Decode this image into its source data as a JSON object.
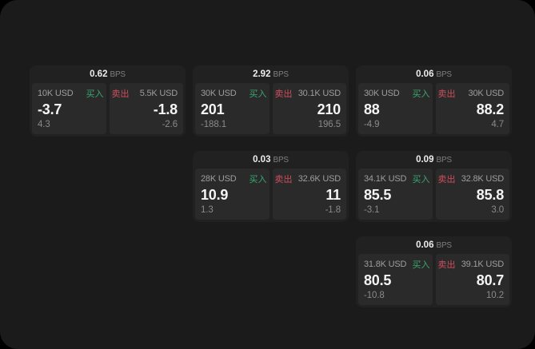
{
  "colors": {
    "window_bg": "#1b1b1c",
    "outer_bg": "#000000",
    "card_bg": "#212122",
    "pane_bg": "#2a2a2b",
    "buy": "#38a76f",
    "sell": "#cd4f5d"
  },
  "bps_unit": "BPS",
  "labels": {
    "buy": "买入",
    "sell": "卖出"
  },
  "cards": [
    {
      "bps": "0.62",
      "col": 1,
      "row": 1,
      "buy": {
        "size": "10K USD",
        "value": "-3.7",
        "sub": "4.3"
      },
      "sell": {
        "size": "5.5K USD",
        "value": "-1.8",
        "sub": "-2.6"
      }
    },
    {
      "bps": "2.92",
      "col": 2,
      "row": 1,
      "buy": {
        "size": "30K USD",
        "value": "201",
        "sub": "-188.1"
      },
      "sell": {
        "size": "30.1K USD",
        "value": "210",
        "sub": "196.5"
      }
    },
    {
      "bps": "0.06",
      "col": 3,
      "row": 1,
      "buy": {
        "size": "30K USD",
        "value": "88",
        "sub": "-4.9"
      },
      "sell": {
        "size": "30K USD",
        "value": "88.2",
        "sub": "4.7"
      }
    },
    {
      "bps": "0.03",
      "col": 2,
      "row": 2,
      "buy": {
        "size": "28K USD",
        "value": "10.9",
        "sub": "1.3"
      },
      "sell": {
        "size": "32.6K USD",
        "value": "11",
        "sub": "-1.8"
      }
    },
    {
      "bps": "0.09",
      "col": 3,
      "row": 2,
      "buy": {
        "size": "34.1K USD",
        "value": "85.5",
        "sub": "-3.1"
      },
      "sell": {
        "size": "32.8K USD",
        "value": "85.8",
        "sub": "3.0"
      }
    },
    {
      "bps": "0.06",
      "col": 3,
      "row": 3,
      "buy": {
        "size": "31.8K USD",
        "value": "80.5",
        "sub": "-10.8"
      },
      "sell": {
        "size": "39.1K USD",
        "value": "80.7",
        "sub": "10.2"
      }
    }
  ]
}
